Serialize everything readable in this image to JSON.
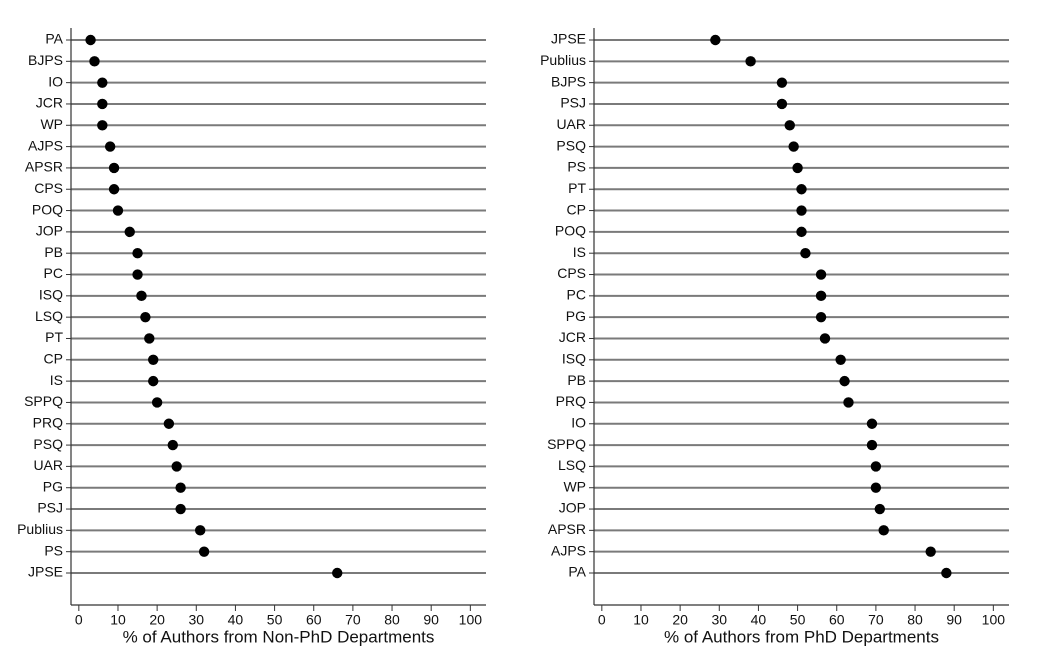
{
  "chart_data": [
    {
      "type": "dot",
      "xlabel": "% of Authors from Non-PhD Departments",
      "categories": [
        "PA",
        "BJPS",
        "IO",
        "JCR",
        "WP",
        "AJPS",
        "APSR",
        "CPS",
        "POQ",
        "JOP",
        "PB",
        "PC",
        "ISQ",
        "LSQ",
        "PT",
        "CP",
        "IS",
        "SPPQ",
        "PRQ",
        "PSQ",
        "UAR",
        "PG",
        "PSJ",
        "Publius",
        "PS",
        "JPSE"
      ],
      "values": [
        3,
        4,
        6,
        6,
        6,
        8,
        9,
        9,
        10,
        13,
        15,
        15,
        16,
        17,
        18,
        19,
        19,
        20,
        23,
        24,
        25,
        26,
        26,
        31,
        32,
        66
      ],
      "color": "#000000",
      "xlim": [
        -2,
        104
      ],
      "xticks": [
        0,
        10,
        20,
        30,
        40,
        50,
        60,
        70,
        80,
        90,
        100
      ]
    },
    {
      "type": "dot",
      "xlabel": "% of Authors from PhD Departments",
      "categories": [
        "JPSE",
        "Publius",
        "BJPS",
        "PSJ",
        "UAR",
        "PSQ",
        "PS",
        "PT",
        "CP",
        "POQ",
        "IS",
        "CPS",
        "PC",
        "PG",
        "JCR",
        "ISQ",
        "PB",
        "PRQ",
        "IO",
        "SPPQ",
        "LSQ",
        "WP",
        "JOP",
        "APSR",
        "AJPS",
        "PA"
      ],
      "values": [
        29,
        38,
        46,
        46,
        48,
        49,
        50,
        51,
        51,
        51,
        52,
        56,
        56,
        56,
        57,
        61,
        62,
        63,
        69,
        69,
        70,
        70,
        71,
        72,
        84,
        88
      ],
      "color": "#000000",
      "xlim": [
        -2,
        104
      ],
      "xticks": [
        0,
        10,
        20,
        30,
        40,
        50,
        60,
        70,
        80,
        90,
        100
      ]
    }
  ]
}
